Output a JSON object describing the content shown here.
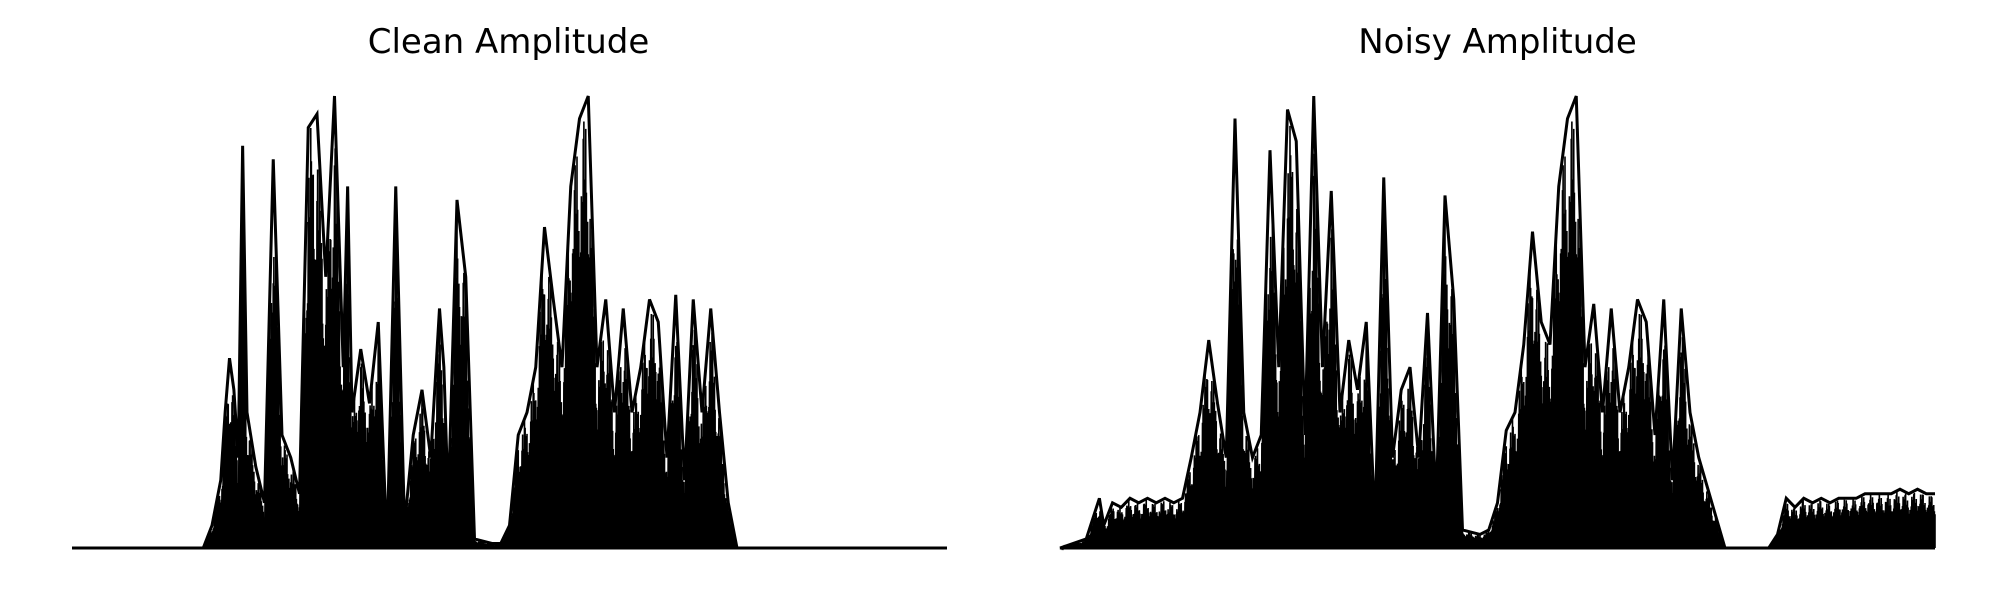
{
  "chart_data": [
    {
      "type": "area",
      "title": "Clean Amplitude",
      "xlabel": "",
      "ylabel": "",
      "axes_visible": false,
      "grid": false,
      "color": "#000000",
      "ylim": [
        0,
        1
      ],
      "envelope": [
        [
          0.0,
          0.0
        ],
        [
          0.15,
          0.0
        ],
        [
          0.16,
          0.05
        ],
        [
          0.17,
          0.15
        ],
        [
          0.175,
          0.3
        ],
        [
          0.18,
          0.42
        ],
        [
          0.185,
          0.35
        ],
        [
          0.19,
          0.2
        ],
        [
          0.195,
          0.89
        ],
        [
          0.2,
          0.3
        ],
        [
          0.21,
          0.18
        ],
        [
          0.22,
          0.1
        ],
        [
          0.23,
          0.86
        ],
        [
          0.24,
          0.25
        ],
        [
          0.25,
          0.2
        ],
        [
          0.26,
          0.12
        ],
        [
          0.27,
          0.93
        ],
        [
          0.28,
          0.96
        ],
        [
          0.29,
          0.6
        ],
        [
          0.3,
          1.0
        ],
        [
          0.31,
          0.4
        ],
        [
          0.315,
          0.8
        ],
        [
          0.32,
          0.3
        ],
        [
          0.33,
          0.44
        ],
        [
          0.34,
          0.32
        ],
        [
          0.35,
          0.5
        ],
        [
          0.36,
          0.0
        ],
        [
          0.37,
          0.8
        ],
        [
          0.38,
          0.05
        ],
        [
          0.39,
          0.25
        ],
        [
          0.4,
          0.35
        ],
        [
          0.41,
          0.2
        ],
        [
          0.42,
          0.53
        ],
        [
          0.425,
          0.4
        ],
        [
          0.43,
          0.1
        ],
        [
          0.44,
          0.77
        ],
        [
          0.45,
          0.6
        ],
        [
          0.46,
          0.02
        ],
        [
          0.48,
          0.01
        ],
        [
          0.49,
          0.01
        ],
        [
          0.5,
          0.05
        ],
        [
          0.51,
          0.25
        ],
        [
          0.52,
          0.3
        ],
        [
          0.53,
          0.4
        ],
        [
          0.54,
          0.71
        ],
        [
          0.55,
          0.55
        ],
        [
          0.56,
          0.4
        ],
        [
          0.57,
          0.8
        ],
        [
          0.58,
          0.95
        ],
        [
          0.59,
          1.0
        ],
        [
          0.6,
          0.4
        ],
        [
          0.61,
          0.55
        ],
        [
          0.62,
          0.3
        ],
        [
          0.63,
          0.53
        ],
        [
          0.64,
          0.3
        ],
        [
          0.65,
          0.4
        ],
        [
          0.66,
          0.55
        ],
        [
          0.67,
          0.5
        ],
        [
          0.68,
          0.2
        ],
        [
          0.69,
          0.56
        ],
        [
          0.7,
          0.15
        ],
        [
          0.71,
          0.55
        ],
        [
          0.72,
          0.3
        ],
        [
          0.73,
          0.53
        ],
        [
          0.74,
          0.3
        ],
        [
          0.75,
          0.1
        ],
        [
          0.76,
          0.0
        ],
        [
          1.0,
          0.0
        ]
      ]
    },
    {
      "type": "area",
      "title": "Noisy Amplitude",
      "xlabel": "",
      "ylabel": "",
      "axes_visible": false,
      "grid": false,
      "color": "#000000",
      "ylim": [
        0,
        1
      ],
      "envelope": [
        [
          0.0,
          0.0
        ],
        [
          0.03,
          0.02
        ],
        [
          0.045,
          0.11
        ],
        [
          0.05,
          0.05
        ],
        [
          0.06,
          0.1
        ],
        [
          0.07,
          0.09
        ],
        [
          0.08,
          0.11
        ],
        [
          0.09,
          0.1
        ],
        [
          0.1,
          0.11
        ],
        [
          0.11,
          0.1
        ],
        [
          0.12,
          0.11
        ],
        [
          0.13,
          0.1
        ],
        [
          0.14,
          0.11
        ],
        [
          0.15,
          0.2
        ],
        [
          0.16,
          0.3
        ],
        [
          0.17,
          0.46
        ],
        [
          0.18,
          0.32
        ],
        [
          0.19,
          0.2
        ],
        [
          0.2,
          0.95
        ],
        [
          0.21,
          0.3
        ],
        [
          0.22,
          0.2
        ],
        [
          0.23,
          0.25
        ],
        [
          0.24,
          0.88
        ],
        [
          0.25,
          0.4
        ],
        [
          0.26,
          0.97
        ],
        [
          0.27,
          0.9
        ],
        [
          0.28,
          0.25
        ],
        [
          0.29,
          1.0
        ],
        [
          0.3,
          0.4
        ],
        [
          0.31,
          0.79
        ],
        [
          0.32,
          0.3
        ],
        [
          0.33,
          0.46
        ],
        [
          0.34,
          0.35
        ],
        [
          0.35,
          0.5
        ],
        [
          0.36,
          0.05
        ],
        [
          0.37,
          0.82
        ],
        [
          0.38,
          0.2
        ],
        [
          0.39,
          0.35
        ],
        [
          0.4,
          0.4
        ],
        [
          0.41,
          0.2
        ],
        [
          0.42,
          0.52
        ],
        [
          0.43,
          0.1
        ],
        [
          0.44,
          0.78
        ],
        [
          0.45,
          0.55
        ],
        [
          0.46,
          0.04
        ],
        [
          0.48,
          0.03
        ],
        [
          0.49,
          0.04
        ],
        [
          0.5,
          0.1
        ],
        [
          0.51,
          0.26
        ],
        [
          0.52,
          0.3
        ],
        [
          0.53,
          0.45
        ],
        [
          0.54,
          0.7
        ],
        [
          0.55,
          0.5
        ],
        [
          0.56,
          0.45
        ],
        [
          0.57,
          0.8
        ],
        [
          0.58,
          0.95
        ],
        [
          0.59,
          1.0
        ],
        [
          0.6,
          0.4
        ],
        [
          0.61,
          0.54
        ],
        [
          0.62,
          0.3
        ],
        [
          0.63,
          0.53
        ],
        [
          0.64,
          0.3
        ],
        [
          0.65,
          0.4
        ],
        [
          0.66,
          0.55
        ],
        [
          0.67,
          0.5
        ],
        [
          0.68,
          0.25
        ],
        [
          0.69,
          0.55
        ],
        [
          0.7,
          0.15
        ],
        [
          0.71,
          0.53
        ],
        [
          0.72,
          0.3
        ],
        [
          0.73,
          0.2
        ],
        [
          0.76,
          0.0
        ],
        [
          0.81,
          0.0
        ],
        [
          0.82,
          0.03
        ],
        [
          0.83,
          0.11
        ],
        [
          0.84,
          0.09
        ],
        [
          0.85,
          0.11
        ],
        [
          0.86,
          0.1
        ],
        [
          0.87,
          0.11
        ],
        [
          0.88,
          0.1
        ],
        [
          0.89,
          0.11
        ],
        [
          0.9,
          0.11
        ],
        [
          0.91,
          0.11
        ],
        [
          0.92,
          0.12
        ],
        [
          0.93,
          0.12
        ],
        [
          0.94,
          0.12
        ],
        [
          0.95,
          0.12
        ],
        [
          0.96,
          0.13
        ],
        [
          0.97,
          0.12
        ],
        [
          0.98,
          0.13
        ],
        [
          0.99,
          0.12
        ],
        [
          1.0,
          0.12
        ]
      ]
    }
  ]
}
